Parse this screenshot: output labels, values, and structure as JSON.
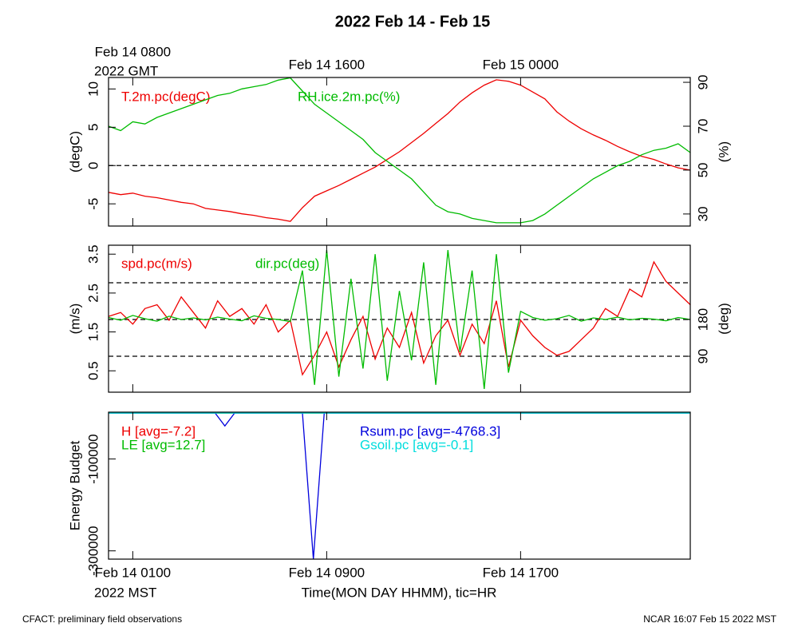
{
  "title": "2022 Feb 14 - Feb 15",
  "footer_left": "CFACT: preliminary field observations",
  "footer_right": "NCAR 16:07 Feb 15 2022 MST",
  "chart_data": [
    {
      "type": "line",
      "x": [
        0,
        0.5,
        1,
        1.5,
        2,
        2.5,
        3,
        3.5,
        4,
        4.5,
        5,
        5.5,
        6,
        6.5,
        7,
        7.5,
        8,
        8.5,
        9,
        9.5,
        10,
        10.5,
        11,
        11.5,
        12,
        12.5,
        13,
        13.5,
        14,
        14.5,
        15,
        15.5,
        16,
        16.5,
        17,
        17.5,
        18,
        18.5,
        19,
        19.5,
        20,
        20.5,
        21,
        21.5,
        22,
        22.5,
        23,
        23.5,
        24
      ],
      "xlim": [
        0,
        24
      ],
      "xticks": [
        1,
        9,
        17
      ],
      "top_xticks": [
        {
          "value": 1,
          "label": "Feb 14 0800"
        },
        {
          "value": 9,
          "label": "Feb 14 1600"
        },
        {
          "value": 17,
          "label": "Feb 15 0000"
        }
      ],
      "top_axis_note": "2022 GMT",
      "ylabel": "(degC)",
      "ylim": [
        -7.9,
        11.5
      ],
      "yticks": [
        -5,
        0,
        5,
        10
      ],
      "y2label": "(%)",
      "y2lim": [
        24.5,
        92.2
      ],
      "y2ticks": [
        30,
        50,
        70,
        90
      ],
      "hlines": [
        0
      ],
      "series": [
        {
          "name": "T.2m.pc(degC)",
          "color": "#ee0000",
          "values": [
            -3.5,
            -3.8,
            -3.6,
            -4.0,
            -4.2,
            -4.5,
            -4.8,
            -5.0,
            -5.6,
            -5.8,
            -6.0,
            -6.3,
            -6.5,
            -6.8,
            -7.0,
            -7.3,
            -5.5,
            -4.0,
            -3.3,
            -2.6,
            -1.8,
            -1.0,
            -0.2,
            0.8,
            1.8,
            3.0,
            4.2,
            5.5,
            6.8,
            8.3,
            9.5,
            10.5,
            11.2,
            11.0,
            10.5,
            9.6,
            8.7,
            7.0,
            5.8,
            4.8,
            4.0,
            3.3,
            2.5,
            1.8,
            1.2,
            0.8,
            0.2,
            -0.3,
            -0.6
          ]
        },
        {
          "name": "RH.ice.2m.pc(%)",
          "color": "#00bb00",
          "axis": "y2",
          "values": [
            70,
            68,
            72,
            71,
            74,
            76,
            78,
            80,
            82,
            84,
            85,
            87,
            88,
            89,
            91,
            92,
            86,
            80,
            76,
            72,
            68,
            64,
            58,
            54,
            50,
            46,
            40,
            34,
            31,
            30,
            28,
            27,
            26,
            26,
            26,
            27,
            30,
            34,
            38,
            42,
            46,
            49,
            52,
            54,
            57,
            59,
            60,
            62,
            58
          ]
        }
      ]
    },
    {
      "type": "line",
      "x": [
        0,
        0.5,
        1,
        1.5,
        2,
        2.5,
        3,
        3.5,
        4,
        4.5,
        5,
        5.5,
        6,
        6.5,
        7,
        7.5,
        8,
        8.5,
        9,
        9.5,
        10,
        10.5,
        11,
        11.5,
        12,
        12.5,
        13,
        13.5,
        14,
        14.5,
        15,
        15.5,
        16,
        16.5,
        17,
        17.5,
        18,
        18.5,
        19,
        19.5,
        20,
        20.5,
        21,
        21.5,
        22,
        22.5,
        23,
        23.5,
        24
      ],
      "xlim": [
        0,
        24
      ],
      "xticks": [
        1,
        9,
        17
      ],
      "ylabel": "(m/s)",
      "ylim": [
        -0.05,
        3.73
      ],
      "yticks": [
        0.5,
        1.5,
        2.5,
        3.5
      ],
      "y2label": "(deg)",
      "y2lim": [
        2,
        362
      ],
      "y2ticks": [
        90,
        180
      ],
      "y2_hlines": [
        90,
        180,
        270
      ],
      "series": [
        {
          "name": "spd.pc(m/s)",
          "color": "#ee0000",
          "values": [
            1.9,
            2.0,
            1.7,
            2.1,
            2.2,
            1.8,
            2.4,
            2.0,
            1.6,
            2.3,
            1.9,
            2.1,
            1.7,
            2.2,
            1.5,
            1.8,
            0.4,
            0.9,
            1.5,
            0.6,
            1.3,
            1.9,
            0.8,
            1.6,
            1.1,
            2.0,
            0.7,
            1.4,
            1.8,
            0.9,
            1.7,
            1.2,
            2.3,
            0.6,
            1.8,
            1.4,
            1.1,
            0.9,
            1.0,
            1.3,
            1.6,
            2.1,
            1.9,
            2.6,
            2.4,
            3.3,
            2.8,
            2.5,
            2.2
          ]
        },
        {
          "name": "dir.pc(deg)",
          "color": "#00bb00",
          "axis": "y2",
          "values": [
            185,
            178,
            190,
            182,
            176,
            188,
            180,
            184,
            179,
            186,
            181,
            177,
            189,
            183,
            180,
            175,
            300,
            20,
            350,
            40,
            280,
            60,
            340,
            30,
            250,
            80,
            320,
            20,
            350,
            100,
            300,
            10,
            340,
            50,
            200,
            185,
            178,
            182,
            190,
            176,
            184,
            180,
            186,
            179,
            183,
            181,
            177,
            185,
            180
          ]
        }
      ]
    },
    {
      "type": "line",
      "x": [
        0,
        4.4,
        4.8,
        5.2,
        8.0,
        8.45,
        8.9,
        24
      ],
      "xlim": [
        0,
        24
      ],
      "xticks": [
        {
          "value": 1,
          "label": "Feb 14 0100"
        },
        {
          "value": 9,
          "label": "Feb 14 0900"
        },
        {
          "value": 17,
          "label": "Feb 14 1700"
        }
      ],
      "bottom_axis_note": "2022 MST",
      "xlabel": "Time(MON DAY HHMM), tic=HR",
      "ylabel": "Energy Budget",
      "ylim": [
        -318000,
        2000
      ],
      "yticks": [
        -100000,
        -300000
      ],
      "series": [
        {
          "name": "H [avg=-7.2]",
          "color": "#ee0000",
          "values": [
            0,
            -10,
            -20,
            -5,
            0,
            -15,
            -5,
            0
          ]
        },
        {
          "name": "LE [avg=12.7]",
          "color": "#00bb00",
          "values": [
            10,
            15,
            5,
            20,
            10,
            12,
            15,
            10
          ]
        },
        {
          "name": "Rsum.pc [avg=-4768.3]",
          "color": "#0000dd",
          "values": [
            0,
            0,
            -28000,
            0,
            0,
            -318000,
            0,
            0
          ]
        },
        {
          "name": "Gsoil.pc [avg=-0.1]",
          "color": "#00dddd",
          "values": [
            0,
            0,
            0,
            0,
            0,
            0,
            0,
            0
          ]
        }
      ]
    }
  ]
}
